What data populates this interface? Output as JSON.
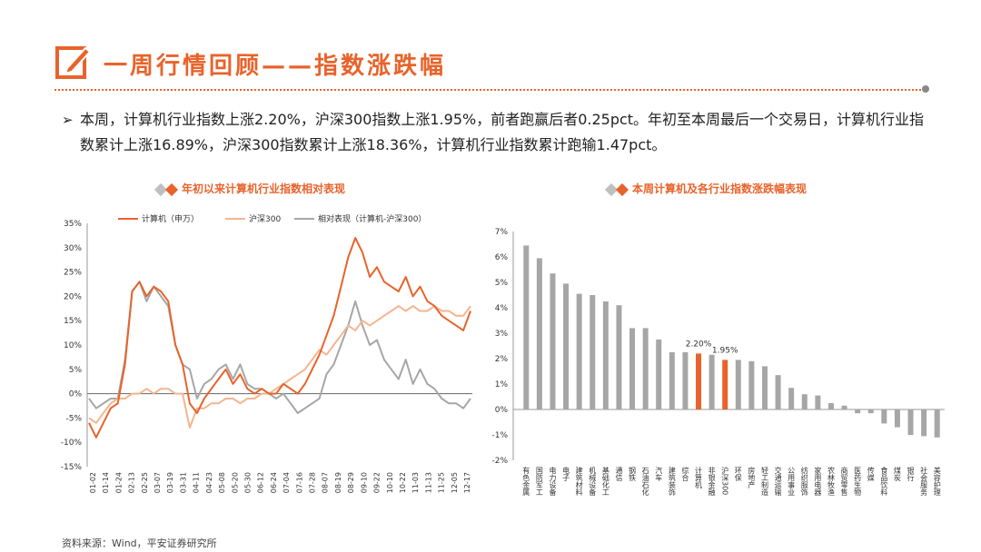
{
  "header": {
    "title": "一周行情回顾——指数涨跌幅"
  },
  "summary": {
    "text": "本周，计算机行业指数上涨2.20%，沪深300指数上涨1.95%，前者跑赢后者0.25pct。年初至本周最后一个交易日，计算机行业指数累计上涨16.89%，沪深300指数累计上涨18.36%，计算机行业指数累计跑输1.47pct。"
  },
  "footer": {
    "source": "资料来源：Wind，平安证券研究所"
  },
  "colors": {
    "accent": "#e8632b",
    "light_orange": "#f5b58f",
    "gray": "#a6a6a6",
    "icon_gray": "#bfbfbf"
  },
  "chart_data": [
    {
      "type": "line",
      "title": "年初以来计算机行业指数相对表现",
      "ylim": [
        -15,
        35
      ],
      "yticks": [
        "-15%",
        "-10%",
        "-5%",
        "0%",
        "5%",
        "10%",
        "15%",
        "20%",
        "25%",
        "30%",
        "35%"
      ],
      "xticks": [
        "01-02",
        "01-14",
        "01-24",
        "02-13",
        "02-25",
        "03-07",
        "03-19",
        "03-31",
        "04-11",
        "04-23",
        "05-08",
        "05-20",
        "05-30",
        "06-12",
        "06-24",
        "07-04",
        "07-16",
        "07-28",
        "08-07",
        "08-19",
        "08-29",
        "09-10",
        "09-22",
        "10-10",
        "10-22",
        "11-03",
        "11-13",
        "11-25",
        "12-05",
        "12-17"
      ],
      "series": [
        {
          "name": "计算机（申万）",
          "color": "#e8632b",
          "values": [
            -6,
            -9,
            -6,
            -3,
            -2,
            6,
            21,
            23,
            20,
            22,
            21,
            19,
            10,
            6,
            -2,
            -4,
            -1,
            1,
            3,
            5,
            2,
            4,
            1,
            0,
            1,
            0,
            0,
            2,
            1,
            0,
            2,
            5,
            8,
            12,
            16,
            22,
            28,
            32,
            29,
            24,
            26,
            23,
            22,
            21,
            24,
            20,
            22,
            19,
            18,
            16,
            15,
            14,
            13,
            17
          ]
        },
        {
          "name": "沪深300",
          "color": "#f5b58f",
          "values": [
            -5,
            -6,
            -4,
            -2,
            -1,
            -1,
            0,
            0,
            1,
            0,
            1,
            1,
            0,
            0,
            -7,
            -3,
            -3,
            -2,
            -2,
            -1,
            -1,
            -2,
            -1,
            -1,
            0,
            0,
            1,
            2,
            3,
            4,
            5,
            7,
            9,
            8,
            10,
            12,
            14,
            13,
            15,
            14,
            15,
            16,
            17,
            18,
            17,
            18,
            17,
            17,
            18,
            17,
            17,
            16,
            16,
            18
          ]
        },
        {
          "name": "相对表现（计算机-沪深300）",
          "color": "#a6a6a6",
          "values": [
            -1,
            -3,
            -2,
            -1,
            -1,
            7,
            21,
            23,
            19,
            22,
            20,
            18,
            10,
            6,
            5,
            -1,
            2,
            3,
            5,
            6,
            3,
            6,
            2,
            1,
            1,
            0,
            -1,
            0,
            -2,
            -4,
            -3,
            -2,
            -1,
            4,
            6,
            10,
            14,
            19,
            14,
            10,
            11,
            7,
            5,
            3,
            7,
            2,
            5,
            2,
            1,
            -1,
            -2,
            -2,
            -3,
            -1
          ]
        }
      ]
    },
    {
      "type": "bar",
      "title": "本周计算机及各行业指数涨跌幅表现",
      "ylim": [
        -2,
        7
      ],
      "yticks": [
        "-2%",
        "-1%",
        "0%",
        "1%",
        "2%",
        "3%",
        "4%",
        "5%",
        "6%",
        "7%"
      ],
      "categories": [
        "有色金属",
        "国防军工",
        "电力设备",
        "电子",
        "建筑材料",
        "机械设备",
        "基础化工",
        "通信",
        "钢铁",
        "石油石化",
        "汽车",
        "建筑装饰",
        "综合",
        "计算机",
        "非银金融",
        "沪深300",
        "环保",
        "房地产",
        "轻工制造",
        "交通运输",
        "公用事业",
        "纺织服饰",
        "家用电器",
        "农林牧渔",
        "商贸零售",
        "医药生物",
        "传媒",
        "食品饮料",
        "煤炭",
        "银行",
        "社会服务",
        "美容护理"
      ],
      "values": [
        6.45,
        5.95,
        5.35,
        4.95,
        4.55,
        4.5,
        4.25,
        4.1,
        3.2,
        3.2,
        2.75,
        2.25,
        2.25,
        2.2,
        2.15,
        1.95,
        1.95,
        1.9,
        1.7,
        1.35,
        0.85,
        0.6,
        0.55,
        0.25,
        0.15,
        -0.15,
        -0.15,
        -0.55,
        -0.7,
        -1.0,
        -1.05,
        -1.1
      ],
      "highlight": [
        "计算机",
        "沪深300"
      ],
      "labels": {
        "计算机": "2.20%",
        "沪深300": "1.95%"
      }
    }
  ]
}
